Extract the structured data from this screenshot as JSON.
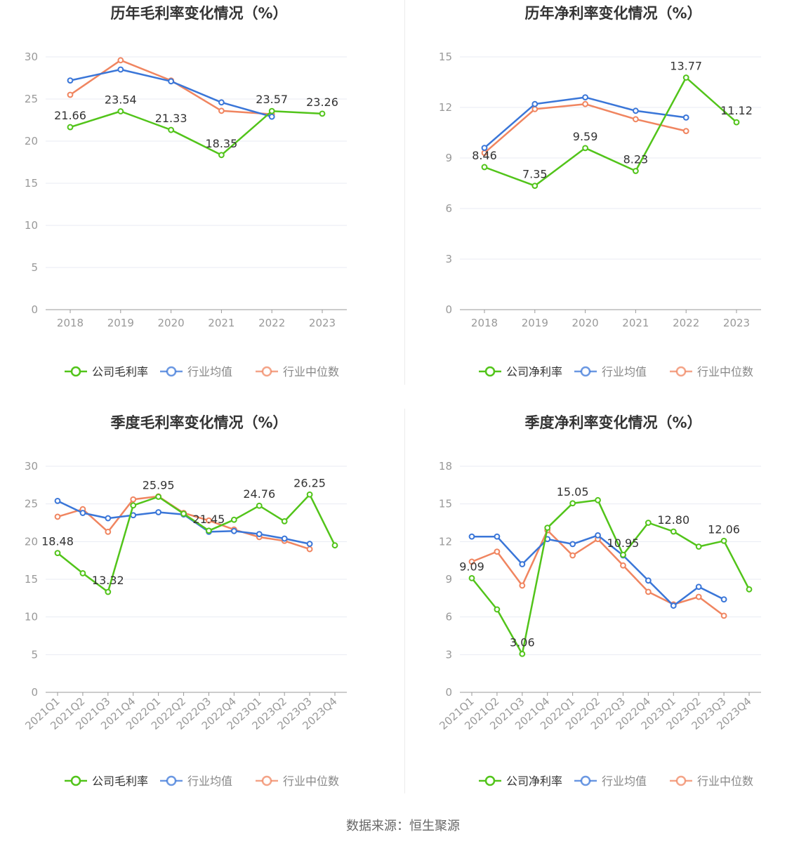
{
  "source_text": "数据来源：恒生聚源",
  "colors": {
    "company": "#52c41a",
    "industry_avg": "#3a76d8",
    "industry_median": "#f08560",
    "grid": "#e8ebf3",
    "axis": "#999999",
    "label": "#333333",
    "title": "#333333",
    "tick": "#666666"
  },
  "chart_data": [
    {
      "type": "line",
      "title": "历年毛利率变化情况（%）",
      "categories": [
        "2018",
        "2019",
        "2020",
        "2021",
        "2022",
        "2023"
      ],
      "ylim": [
        0,
        30
      ],
      "yticks": [
        0,
        5,
        10,
        15,
        20,
        25,
        30
      ],
      "ytick_labels": [
        "0",
        "5",
        "10",
        "15",
        "20",
        "25",
        "30"
      ],
      "rotate_x_labels": false,
      "legend_position": "bottom-center",
      "grid": true,
      "series": [
        {
          "name": "公司毛利率",
          "color_key": "company",
          "values": [
            21.66,
            23.54,
            21.33,
            18.35,
            23.57,
            23.26
          ],
          "labels": [
            "21.66",
            "23.54",
            "21.33",
            "18.35",
            "23.57",
            "23.26"
          ]
        },
        {
          "name": "行业均值",
          "color_key": "industry_avg",
          "values": [
            27.2,
            28.5,
            27.1,
            24.6,
            22.9,
            null
          ]
        },
        {
          "name": "行业中位数",
          "color_key": "industry_median",
          "values": [
            25.5,
            29.6,
            27.2,
            23.6,
            23.2,
            null
          ]
        }
      ]
    },
    {
      "type": "line",
      "title": "历年净利率变化情况（%）",
      "categories": [
        "2018",
        "2019",
        "2020",
        "2021",
        "2022",
        "2023"
      ],
      "ylim": [
        0,
        15
      ],
      "yticks": [
        0,
        3,
        6,
        9,
        12,
        15
      ],
      "ytick_labels": [
        "0",
        "3",
        "6",
        "9",
        "12",
        "15"
      ],
      "rotate_x_labels": false,
      "legend_position": "bottom-center",
      "grid": true,
      "series": [
        {
          "name": "公司净利率",
          "color_key": "company",
          "values": [
            8.46,
            7.35,
            9.59,
            8.23,
            13.77,
            11.12
          ],
          "labels": [
            "8.46",
            "7.35",
            "9.59",
            "8.23",
            "13.77",
            "11.12"
          ]
        },
        {
          "name": "行业均值",
          "color_key": "industry_avg",
          "values": [
            9.6,
            12.2,
            12.6,
            11.8,
            11.4,
            null
          ]
        },
        {
          "name": "行业中位数",
          "color_key": "industry_median",
          "values": [
            9.3,
            11.9,
            12.2,
            11.3,
            10.6,
            null
          ]
        }
      ]
    },
    {
      "type": "line",
      "title": "季度毛利率变化情况（%）",
      "categories": [
        "2021Q1",
        "2021Q2",
        "2021Q3",
        "2021Q4",
        "2022Q1",
        "2022Q2",
        "2022Q3",
        "2022Q4",
        "2023Q1",
        "2023Q2",
        "2023Q3",
        "2023Q4"
      ],
      "ylim": [
        0,
        30
      ],
      "yticks": [
        0,
        5,
        10,
        15,
        20,
        25,
        30
      ],
      "ytick_labels": [
        "0",
        "5",
        "10",
        "15",
        "20",
        "25",
        "30"
      ],
      "rotate_x_labels": true,
      "legend_position": "bottom-center",
      "grid": true,
      "series": [
        {
          "name": "公司毛利率",
          "color_key": "company",
          "values": [
            18.48,
            15.8,
            13.32,
            24.8,
            25.95,
            23.7,
            21.45,
            22.9,
            24.76,
            22.7,
            26.25,
            19.5
          ],
          "labels": [
            "18.48",
            "",
            "13.32",
            "",
            "25.95",
            "",
            "21.45",
            "",
            "24.76",
            "",
            "26.25",
            ""
          ]
        },
        {
          "name": "行业均值",
          "color_key": "industry_avg",
          "values": [
            25.4,
            23.8,
            23.1,
            23.5,
            23.9,
            23.6,
            21.3,
            21.4,
            21.0,
            20.4,
            19.7,
            null
          ]
        },
        {
          "name": "行业中位数",
          "color_key": "industry_median",
          "values": [
            23.3,
            24.3,
            21.3,
            25.6,
            26.0,
            23.8,
            22.8,
            21.6,
            20.6,
            20.1,
            19.0,
            null
          ]
        }
      ]
    },
    {
      "type": "line",
      "title": "季度净利率变化情况（%）",
      "categories": [
        "2021Q1",
        "2021Q2",
        "2021Q3",
        "2021Q4",
        "2022Q1",
        "2022Q2",
        "2022Q3",
        "2022Q4",
        "2023Q1",
        "2023Q2",
        "2023Q3",
        "2023Q4"
      ],
      "ylim": [
        0,
        18
      ],
      "yticks": [
        0,
        3,
        6,
        9,
        12,
        15,
        18
      ],
      "ytick_labels": [
        "0",
        "3",
        "6",
        "9",
        "12",
        "15",
        "18"
      ],
      "rotate_x_labels": true,
      "legend_position": "bottom-center",
      "grid": true,
      "series": [
        {
          "name": "公司净利率",
          "color_key": "company",
          "values": [
            9.09,
            6.6,
            3.06,
            13.1,
            15.05,
            15.3,
            10.95,
            13.5,
            12.8,
            11.6,
            12.06,
            8.2
          ],
          "labels": [
            "9.09",
            "",
            "3.06",
            "",
            "15.05",
            "",
            "10.95",
            "",
            "12.80",
            "",
            "12.06",
            ""
          ]
        },
        {
          "name": "行业均值",
          "color_key": "industry_avg",
          "values": [
            12.4,
            12.4,
            10.2,
            12.2,
            11.8,
            12.5,
            10.9,
            8.9,
            6.9,
            8.4,
            7.4,
            null
          ]
        },
        {
          "name": "行业中位数",
          "color_key": "industry_median",
          "values": [
            10.4,
            11.2,
            8.5,
            12.9,
            10.9,
            12.2,
            10.1,
            8.0,
            7.0,
            7.6,
            6.1,
            null
          ]
        }
      ]
    }
  ]
}
